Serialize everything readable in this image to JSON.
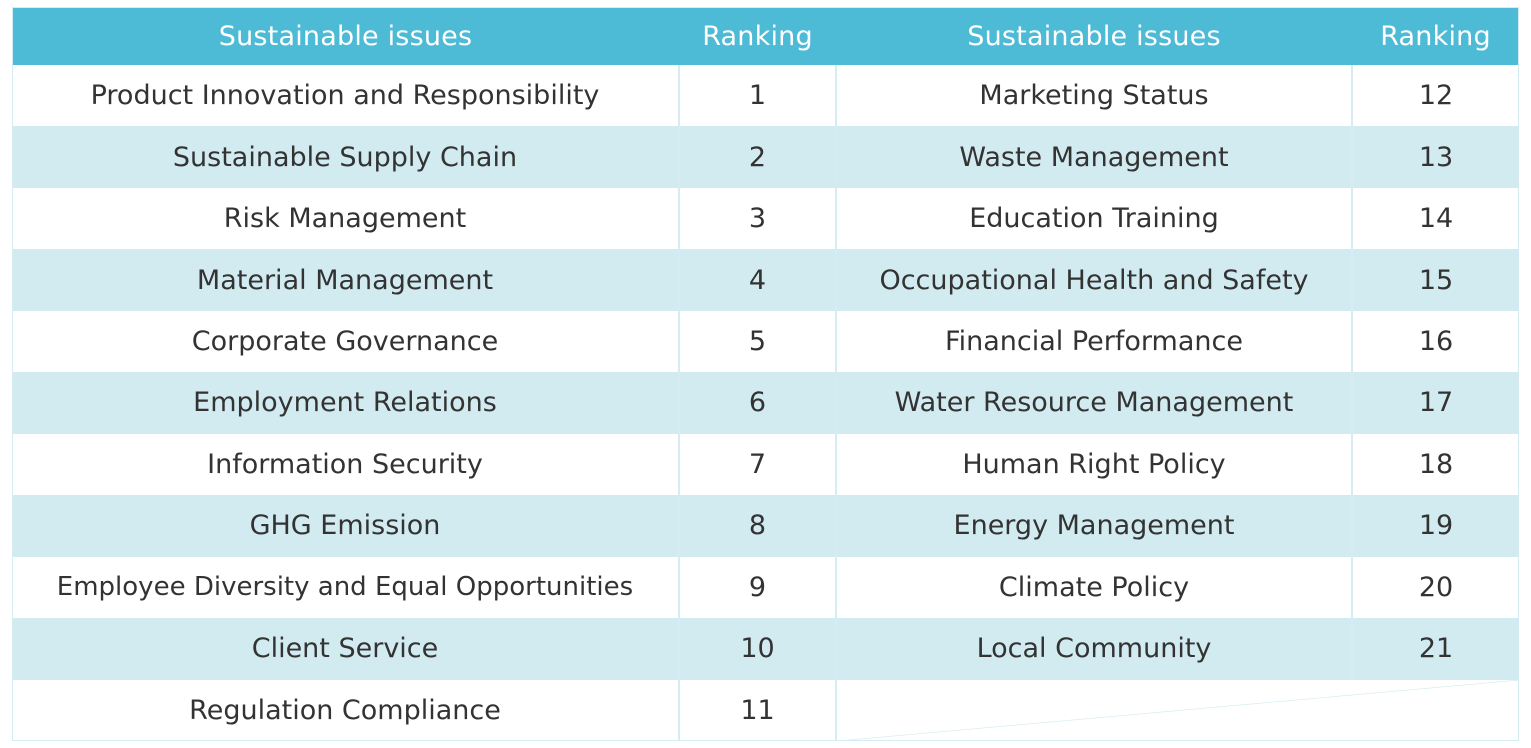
{
  "table": {
    "headers": {
      "issue_left": "Sustainable issues",
      "rank_left": "Ranking",
      "issue_right": "Sustainable issues",
      "rank_right": "Ranking"
    },
    "rows": [
      {
        "issue_left": "Product Innovation and Responsibility",
        "rank_left": "1",
        "issue_right": "Marketing Status",
        "rank_right": "12"
      },
      {
        "issue_left": "Sustainable Supply Chain",
        "rank_left": "2",
        "issue_right": "Waste Management",
        "rank_right": "13"
      },
      {
        "issue_left": "Risk Management",
        "rank_left": "3",
        "issue_right": "Education Training",
        "rank_right": "14"
      },
      {
        "issue_left": "Material Management",
        "rank_left": "4",
        "issue_right": "Occupational Health and Safety",
        "rank_right": "15"
      },
      {
        "issue_left": "Corporate Governance",
        "rank_left": "5",
        "issue_right": "Financial Performance",
        "rank_right": "16"
      },
      {
        "issue_left": "Employment Relations",
        "rank_left": "6",
        "issue_right": "Water Resource Management",
        "rank_right": "17"
      },
      {
        "issue_left": "Information Security",
        "rank_left": "7",
        "issue_right": "Human Right Policy",
        "rank_right": "18"
      },
      {
        "issue_left": "GHG Emission",
        "rank_left": "8",
        "issue_right": "Energy Management",
        "rank_right": "19"
      },
      {
        "issue_left": "Employee Diversity and Equal Opportunities",
        "rank_left": "9",
        "issue_right": "Climate Policy",
        "rank_right": "20"
      },
      {
        "issue_left": "Client Service",
        "rank_left": "10",
        "issue_right": "Local Community",
        "rank_right": "21"
      },
      {
        "issue_left": "Regulation Compliance",
        "rank_left": "11",
        "issue_right": "",
        "rank_right": ""
      }
    ]
  },
  "colors": {
    "header_bg": "#4dbad6",
    "header_text": "#ffffff",
    "row_alt_bg": "#d2ebf1",
    "row_bg": "#ffffff",
    "text": "#333333"
  }
}
